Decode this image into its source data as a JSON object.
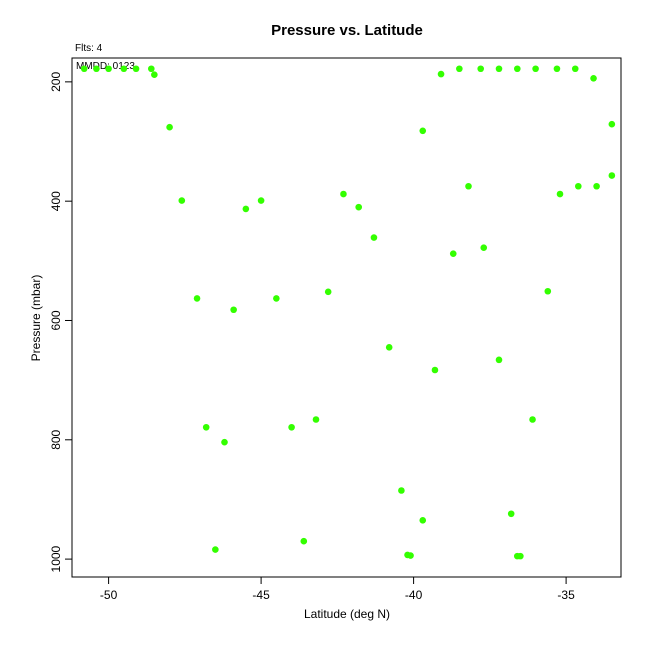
{
  "chart_data": {
    "type": "scatter",
    "title": "Pressure vs. Latitude",
    "xlabel": "Latitude (deg N)",
    "ylabel": "Pressure (mbar)",
    "annotations": {
      "flts": "Flts: 4",
      "mmdd": "MMDD: 0123"
    },
    "xlim": [
      -51.2,
      -33.2
    ],
    "ylim": [
      1030,
      160
    ],
    "y_reversed": true,
    "grid": false,
    "x_ticks": [
      -50,
      -45,
      -40,
      -35
    ],
    "x_tick_labels": [
      "-50",
      "-45",
      "-40",
      "-35"
    ],
    "y_ticks": [
      200,
      400,
      600,
      800,
      1000
    ],
    "y_tick_labels": [
      "200",
      "400",
      "600",
      "800",
      "1000"
    ],
    "marker_color": "#33ff00",
    "series": [
      {
        "points": [
          [
            -50.8,
            178
          ],
          [
            -50.4,
            178
          ],
          [
            -50.0,
            178
          ],
          [
            -49.5,
            178
          ],
          [
            -49.1,
            178
          ],
          [
            -48.6,
            178
          ],
          [
            -48.5,
            188
          ],
          [
            -48.0,
            276
          ],
          [
            -47.6,
            399
          ],
          [
            -47.1,
            563
          ],
          [
            -46.8,
            779
          ],
          [
            -46.5,
            984
          ],
          [
            -46.2,
            804
          ],
          [
            -45.9,
            582
          ],
          [
            -45.5,
            413
          ],
          [
            -45.0,
            399
          ],
          [
            -44.5,
            563
          ],
          [
            -44.0,
            779
          ],
          [
            -43.6,
            970
          ],
          [
            -43.2,
            766
          ],
          [
            -42.8,
            552
          ],
          [
            -42.3,
            388
          ],
          [
            -41.8,
            410
          ],
          [
            -41.3,
            461
          ],
          [
            -40.8,
            645
          ],
          [
            -40.4,
            885
          ],
          [
            -40.2,
            993
          ],
          [
            -40.1,
            994
          ],
          [
            -39.7,
            282
          ],
          [
            -39.7,
            935
          ],
          [
            -39.3,
            683
          ],
          [
            -39.1,
            187
          ],
          [
            -38.7,
            488
          ],
          [
            -38.5,
            178
          ],
          [
            -38.2,
            375
          ],
          [
            -37.8,
            178
          ],
          [
            -37.7,
            478
          ],
          [
            -37.2,
            178
          ],
          [
            -37.2,
            666
          ],
          [
            -36.8,
            924
          ],
          [
            -36.6,
            995
          ],
          [
            -36.5,
            995
          ],
          [
            -36.6,
            178
          ],
          [
            -36.1,
            766
          ],
          [
            -36.0,
            178
          ],
          [
            -35.6,
            551
          ],
          [
            -35.3,
            178
          ],
          [
            -35.2,
            388
          ],
          [
            -34.7,
            178
          ],
          [
            -34.6,
            375
          ],
          [
            -34.1,
            194
          ],
          [
            -34.0,
            375
          ],
          [
            -33.5,
            271
          ],
          [
            -33.5,
            357
          ]
        ]
      }
    ]
  }
}
